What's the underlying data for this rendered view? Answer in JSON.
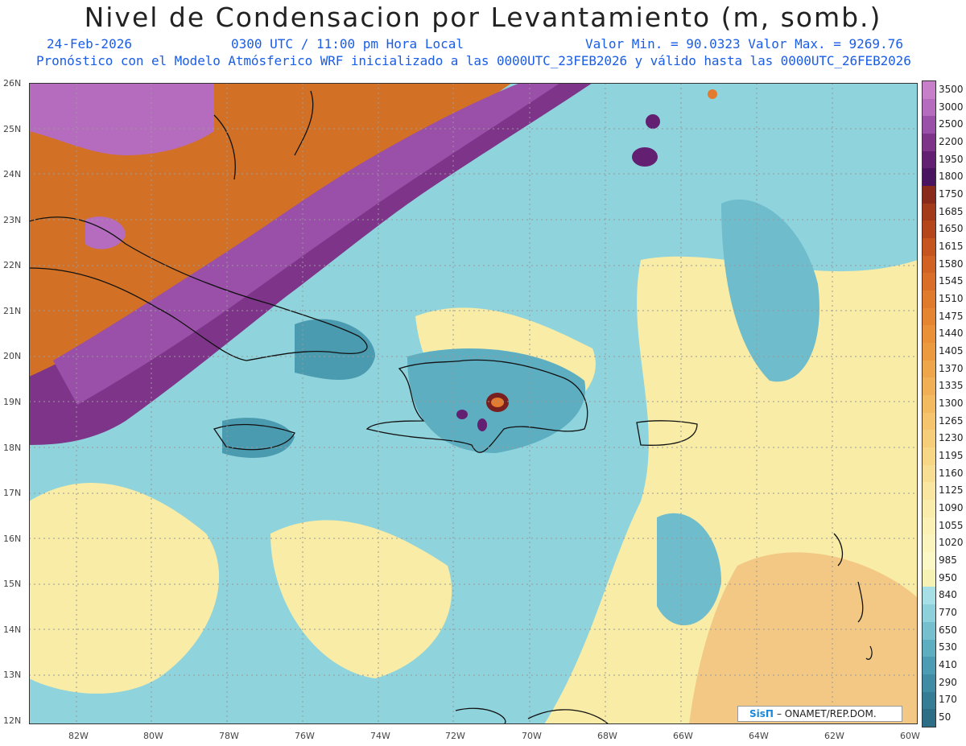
{
  "title": "Nivel de Condensacion por Levantamiento (m, somb.)",
  "header": {
    "date": "24-Feb-2026",
    "time": "0300 UTC / 11:00 pm Hora Local",
    "minmax": "Valor Min. = 90.0323  Valor Max. = 9269.76",
    "model": "Pronóstico con el Modelo Atmósferico WRF inicializado a las 0000UTC_23FEB2026 y válido hasta las  0000UTC_26FEB2026"
  },
  "axes": {
    "lat_labels": [
      "26N",
      "25N",
      "24N",
      "23N",
      "22N",
      "21N",
      "20N",
      "19N",
      "18N",
      "17N",
      "16N",
      "15N",
      "14N",
      "13N",
      "12N"
    ],
    "lon_labels": [
      "82W",
      "80W",
      "78W",
      "76W",
      "74W",
      "72W",
      "70W",
      "68W",
      "66W",
      "64W",
      "62W",
      "60W"
    ]
  },
  "colorbar": {
    "labels": [
      "3500",
      "3000",
      "2500",
      "2200",
      "1950",
      "1800",
      "1750",
      "1685",
      "1650",
      "1615",
      "1580",
      "1545",
      "1510",
      "1475",
      "1440",
      "1405",
      "1370",
      "1335",
      "1300",
      "1265",
      "1230",
      "1195",
      "1160",
      "1125",
      "1090",
      "1055",
      "1020",
      "985",
      "950",
      "840",
      "770",
      "650",
      "530",
      "410",
      "290",
      "170",
      "50"
    ],
    "colors": [
      "#c77fc9",
      "#b56cbf",
      "#9a4fa8",
      "#7d3489",
      "#632072",
      "#4a1560",
      "#8a2a1a",
      "#a33a1a",
      "#b5461c",
      "#c5541f",
      "#d26224",
      "#da6e28",
      "#e07a2c",
      "#e58532",
      "#e99039",
      "#ec9a40",
      "#efa54a",
      "#f1b055",
      "#f3ba60",
      "#f5c46c",
      "#f6cd79",
      "#f7d686",
      "#f8de93",
      "#f9e6a0",
      "#faecab",
      "#fbf1b5",
      "#fbf5bd",
      "#fbf8c5",
      "#f6f2b4",
      "#a6dfe6",
      "#8ed0dc",
      "#76bfcf",
      "#5eaec2",
      "#4c9db4",
      "#3f8ca4",
      "#357d95",
      "#2d6e86"
    ]
  },
  "credit": {
    "logo": "SisΠ",
    "text": "– ONAMET/REP.DOM."
  }
}
